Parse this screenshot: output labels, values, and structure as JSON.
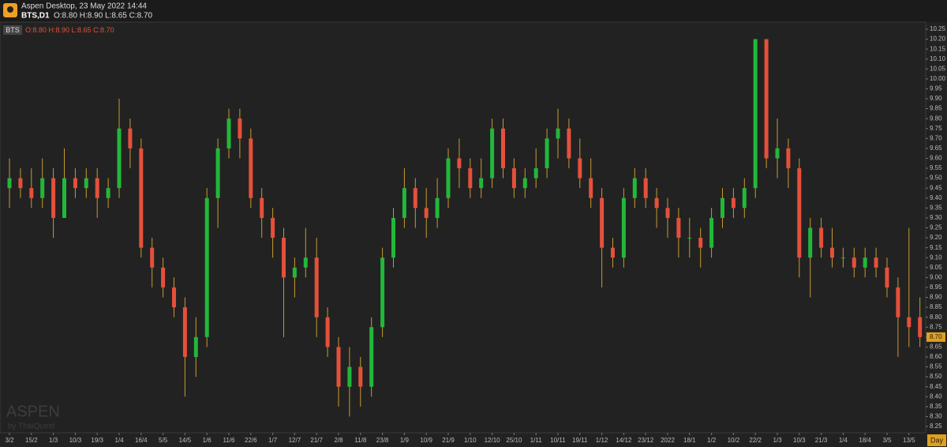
{
  "header": {
    "title": "Aspen Desktop, 23 May 2022 14:44",
    "symbol": "BTS,D1",
    "ohlc": "O:8.80 H:8.90 L:8.65 C:8.70"
  },
  "chart_data": {
    "type": "candlestick",
    "panel_symbol": "BTS",
    "x_axis_label": "Day",
    "watermark": "ASPEN",
    "watermark_sub": "by ThaiQuest",
    "up_color": "#21b83a",
    "down_color": "#e5503b",
    "wick_color": "#c99a2e",
    "last_price_label": "8.70",
    "categories": [
      "3/2",
      null,
      "15/2",
      null,
      "1/3",
      null,
      "10/3",
      null,
      "19/3",
      null,
      "1/4",
      null,
      "16/4",
      null,
      "5/5",
      null,
      "14/5",
      null,
      "1/6",
      null,
      "11/6",
      null,
      "22/6",
      null,
      "1/7",
      null,
      "12/7",
      null,
      "21/7",
      null,
      "2/8",
      null,
      "11/8",
      null,
      "23/8",
      null,
      "1/9",
      null,
      "10/9",
      null,
      "21/9",
      null,
      "1/10",
      null,
      "12/10",
      null,
      "25/10",
      null,
      "1/11",
      null,
      "10/11",
      null,
      "19/11",
      null,
      "1/12",
      null,
      "14/12",
      null,
      "23/12",
      null,
      "2022",
      null,
      "18/1",
      null,
      "1/2",
      null,
      "10/2",
      null,
      "22/2",
      null,
      "1/3",
      null,
      "10/3",
      null,
      "21/3",
      null,
      "1/4",
      null,
      "18/4",
      null,
      "3/5",
      null,
      "13/5",
      null
    ],
    "open": [
      9.45,
      9.5,
      9.45,
      9.4,
      9.5,
      9.3,
      9.5,
      9.45,
      9.5,
      9.4,
      9.45,
      9.75,
      9.65,
      9.15,
      9.05,
      8.95,
      8.85,
      8.6,
      8.7,
      9.4,
      9.65,
      9.8,
      9.7,
      9.4,
      9.3,
      9.2,
      9.0,
      9.05,
      9.1,
      8.8,
      8.65,
      8.45,
      8.55,
      8.45,
      8.75,
      9.1,
      9.3,
      9.45,
      9.35,
      9.3,
      9.4,
      9.6,
      9.55,
      9.45,
      9.5,
      9.75,
      9.55,
      9.45,
      9.5,
      9.55,
      9.7,
      9.75,
      9.6,
      9.5,
      9.4,
      9.15,
      9.1,
      9.4,
      9.5,
      9.4,
      9.35,
      9.3,
      9.2,
      9.2,
      9.15,
      9.3,
      9.4,
      9.35,
      9.45,
      10.2,
      9.6,
      9.65,
      9.55,
      9.1,
      9.25,
      9.15,
      9.1,
      9.1,
      9.05,
      9.1,
      9.05,
      8.95,
      8.8,
      8.8
    ],
    "high": [
      9.6,
      9.55,
      9.55,
      9.6,
      9.55,
      9.65,
      9.55,
      9.55,
      9.55,
      9.5,
      9.9,
      9.8,
      9.7,
      9.2,
      9.1,
      9.0,
      8.9,
      8.8,
      9.45,
      9.7,
      9.85,
      9.85,
      9.75,
      9.45,
      9.35,
      9.25,
      9.1,
      9.25,
      9.2,
      8.85,
      8.7,
      8.65,
      8.6,
      8.8,
      9.15,
      9.35,
      9.55,
      9.5,
      9.45,
      9.5,
      9.65,
      9.7,
      9.6,
      9.6,
      9.8,
      9.8,
      9.6,
      9.55,
      9.65,
      9.75,
      9.85,
      9.8,
      9.7,
      9.6,
      9.45,
      9.2,
      9.45,
      9.55,
      9.55,
      9.45,
      9.4,
      9.35,
      9.3,
      9.25,
      9.35,
      9.45,
      9.45,
      9.5,
      10.2,
      10.2,
      9.8,
      9.7,
      9.6,
      9.3,
      9.3,
      9.25,
      9.15,
      9.15,
      9.15,
      9.15,
      9.1,
      9.0,
      9.25,
      8.9
    ],
    "low": [
      9.35,
      9.4,
      9.35,
      9.35,
      9.2,
      9.3,
      9.4,
      9.4,
      9.3,
      9.35,
      9.4,
      9.55,
      9.1,
      8.95,
      8.9,
      8.8,
      8.4,
      8.5,
      8.65,
      9.25,
      9.6,
      9.6,
      9.35,
      9.2,
      9.1,
      8.7,
      8.9,
      9.0,
      8.7,
      8.6,
      8.35,
      8.3,
      8.35,
      8.4,
      8.7,
      9.05,
      9.25,
      9.25,
      9.2,
      9.25,
      9.35,
      9.45,
      9.4,
      9.4,
      9.45,
      9.5,
      9.4,
      9.4,
      9.45,
      9.5,
      9.6,
      9.55,
      9.45,
      9.35,
      8.95,
      9.05,
      9.05,
      9.35,
      9.35,
      9.25,
      9.2,
      9.1,
      9.1,
      9.05,
      9.1,
      9.25,
      9.3,
      9.3,
      9.4,
      9.55,
      9.5,
      9.45,
      9.0,
      8.9,
      9.1,
      9.05,
      9.05,
      9.0,
      9.0,
      9.0,
      8.9,
      8.6,
      8.65,
      8.65
    ],
    "close": [
      9.5,
      9.45,
      9.4,
      9.5,
      9.3,
      9.5,
      9.45,
      9.5,
      9.4,
      9.45,
      9.75,
      9.65,
      9.15,
      9.05,
      8.95,
      8.85,
      8.6,
      8.7,
      9.4,
      9.65,
      9.8,
      9.7,
      9.4,
      9.3,
      9.2,
      9.0,
      9.05,
      9.1,
      8.8,
      8.65,
      8.45,
      8.55,
      8.45,
      8.75,
      9.1,
      9.3,
      9.45,
      9.35,
      9.3,
      9.4,
      9.6,
      9.55,
      9.45,
      9.5,
      9.75,
      9.55,
      9.45,
      9.5,
      9.55,
      9.7,
      9.75,
      9.6,
      9.5,
      9.4,
      9.15,
      9.1,
      9.4,
      9.5,
      9.4,
      9.35,
      9.3,
      9.2,
      9.2,
      9.15,
      9.3,
      9.4,
      9.35,
      9.45,
      10.2,
      9.6,
      9.65,
      9.55,
      9.1,
      9.25,
      9.15,
      9.1,
      9.1,
      9.05,
      9.1,
      9.05,
      8.95,
      8.8,
      8.75,
      8.7
    ],
    "ylim": [
      8.25,
      10.25
    ],
    "yticks": [
      8.25,
      {
        "value": 8.3,
        "label": "8.30"
      },
      8.35,
      {
        "value": 8.4,
        "label": "8.40"
      },
      8.45,
      {
        "value": 8.5,
        "label": "8.50"
      },
      8.55,
      {
        "value": 8.6,
        "label": "8.60"
      },
      8.65,
      {
        "value": 8.7,
        "label": "8.70"
      },
      8.75,
      {
        "value": 8.8,
        "label": "8.80"
      },
      8.85,
      {
        "value": 8.9,
        "label": "8.90"
      },
      8.95,
      {
        "value": 9,
        "label": "9.00"
      },
      9.05,
      {
        "value": 9.1,
        "label": "9.10"
      },
      9.15,
      {
        "value": 9.2,
        "label": "9.20"
      },
      9.25,
      {
        "value": 9.3,
        "label": "9.30"
      },
      9.35,
      {
        "value": 9.4,
        "label": "9.40"
      },
      9.45,
      {
        "value": 9.5,
        "label": "9.50"
      },
      9.55,
      {
        "value": 9.6,
        "label": "9.60"
      },
      9.65,
      {
        "value": 9.7,
        "label": "9.70"
      },
      9.75,
      {
        "value": 9.8,
        "label": "9.80"
      },
      9.85,
      {
        "value": 9.9,
        "label": "9.90"
      },
      9.95,
      {
        "value": 10,
        "label": "10.00"
      },
      10.05,
      {
        "value": 10.1,
        "label": "10.10"
      },
      10.15,
      {
        "value": 10.2,
        "label": "10.20"
      },
      10.25
    ]
  }
}
